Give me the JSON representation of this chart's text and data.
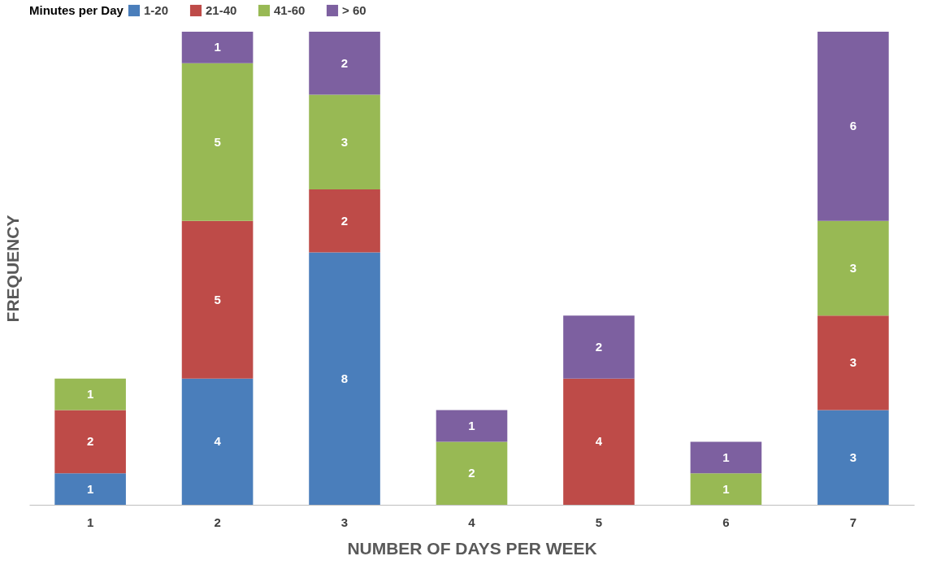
{
  "chart_data": {
    "type": "bar",
    "stacked": true,
    "xlabel": "NUMBER OF DAYS PER WEEK",
    "ylabel": "FREQUENCY",
    "legend_title": "Minutes per Day",
    "legend": "top",
    "data_labels": true,
    "grid": false,
    "tick_labels": "x",
    "ylim": [
      0,
      15
    ],
    "categories": [
      "1",
      "2",
      "3",
      "4",
      "5",
      "6",
      "7"
    ],
    "series": [
      {
        "name": "1-20",
        "color": "#4a7ebb",
        "values": [
          1,
          4,
          8,
          null,
          null,
          null,
          3
        ]
      },
      {
        "name": "21-40",
        "color": "#be4b48",
        "values": [
          2,
          5,
          2,
          null,
          4,
          null,
          3
        ]
      },
      {
        "name": "41-60",
        "color": "#98b954",
        "values": [
          1,
          5,
          3,
          2,
          null,
          1,
          3
        ]
      },
      {
        "name": "> 60",
        "color": "#7d60a0",
        "values": [
          null,
          1,
          2,
          1,
          2,
          1,
          6
        ]
      }
    ]
  }
}
